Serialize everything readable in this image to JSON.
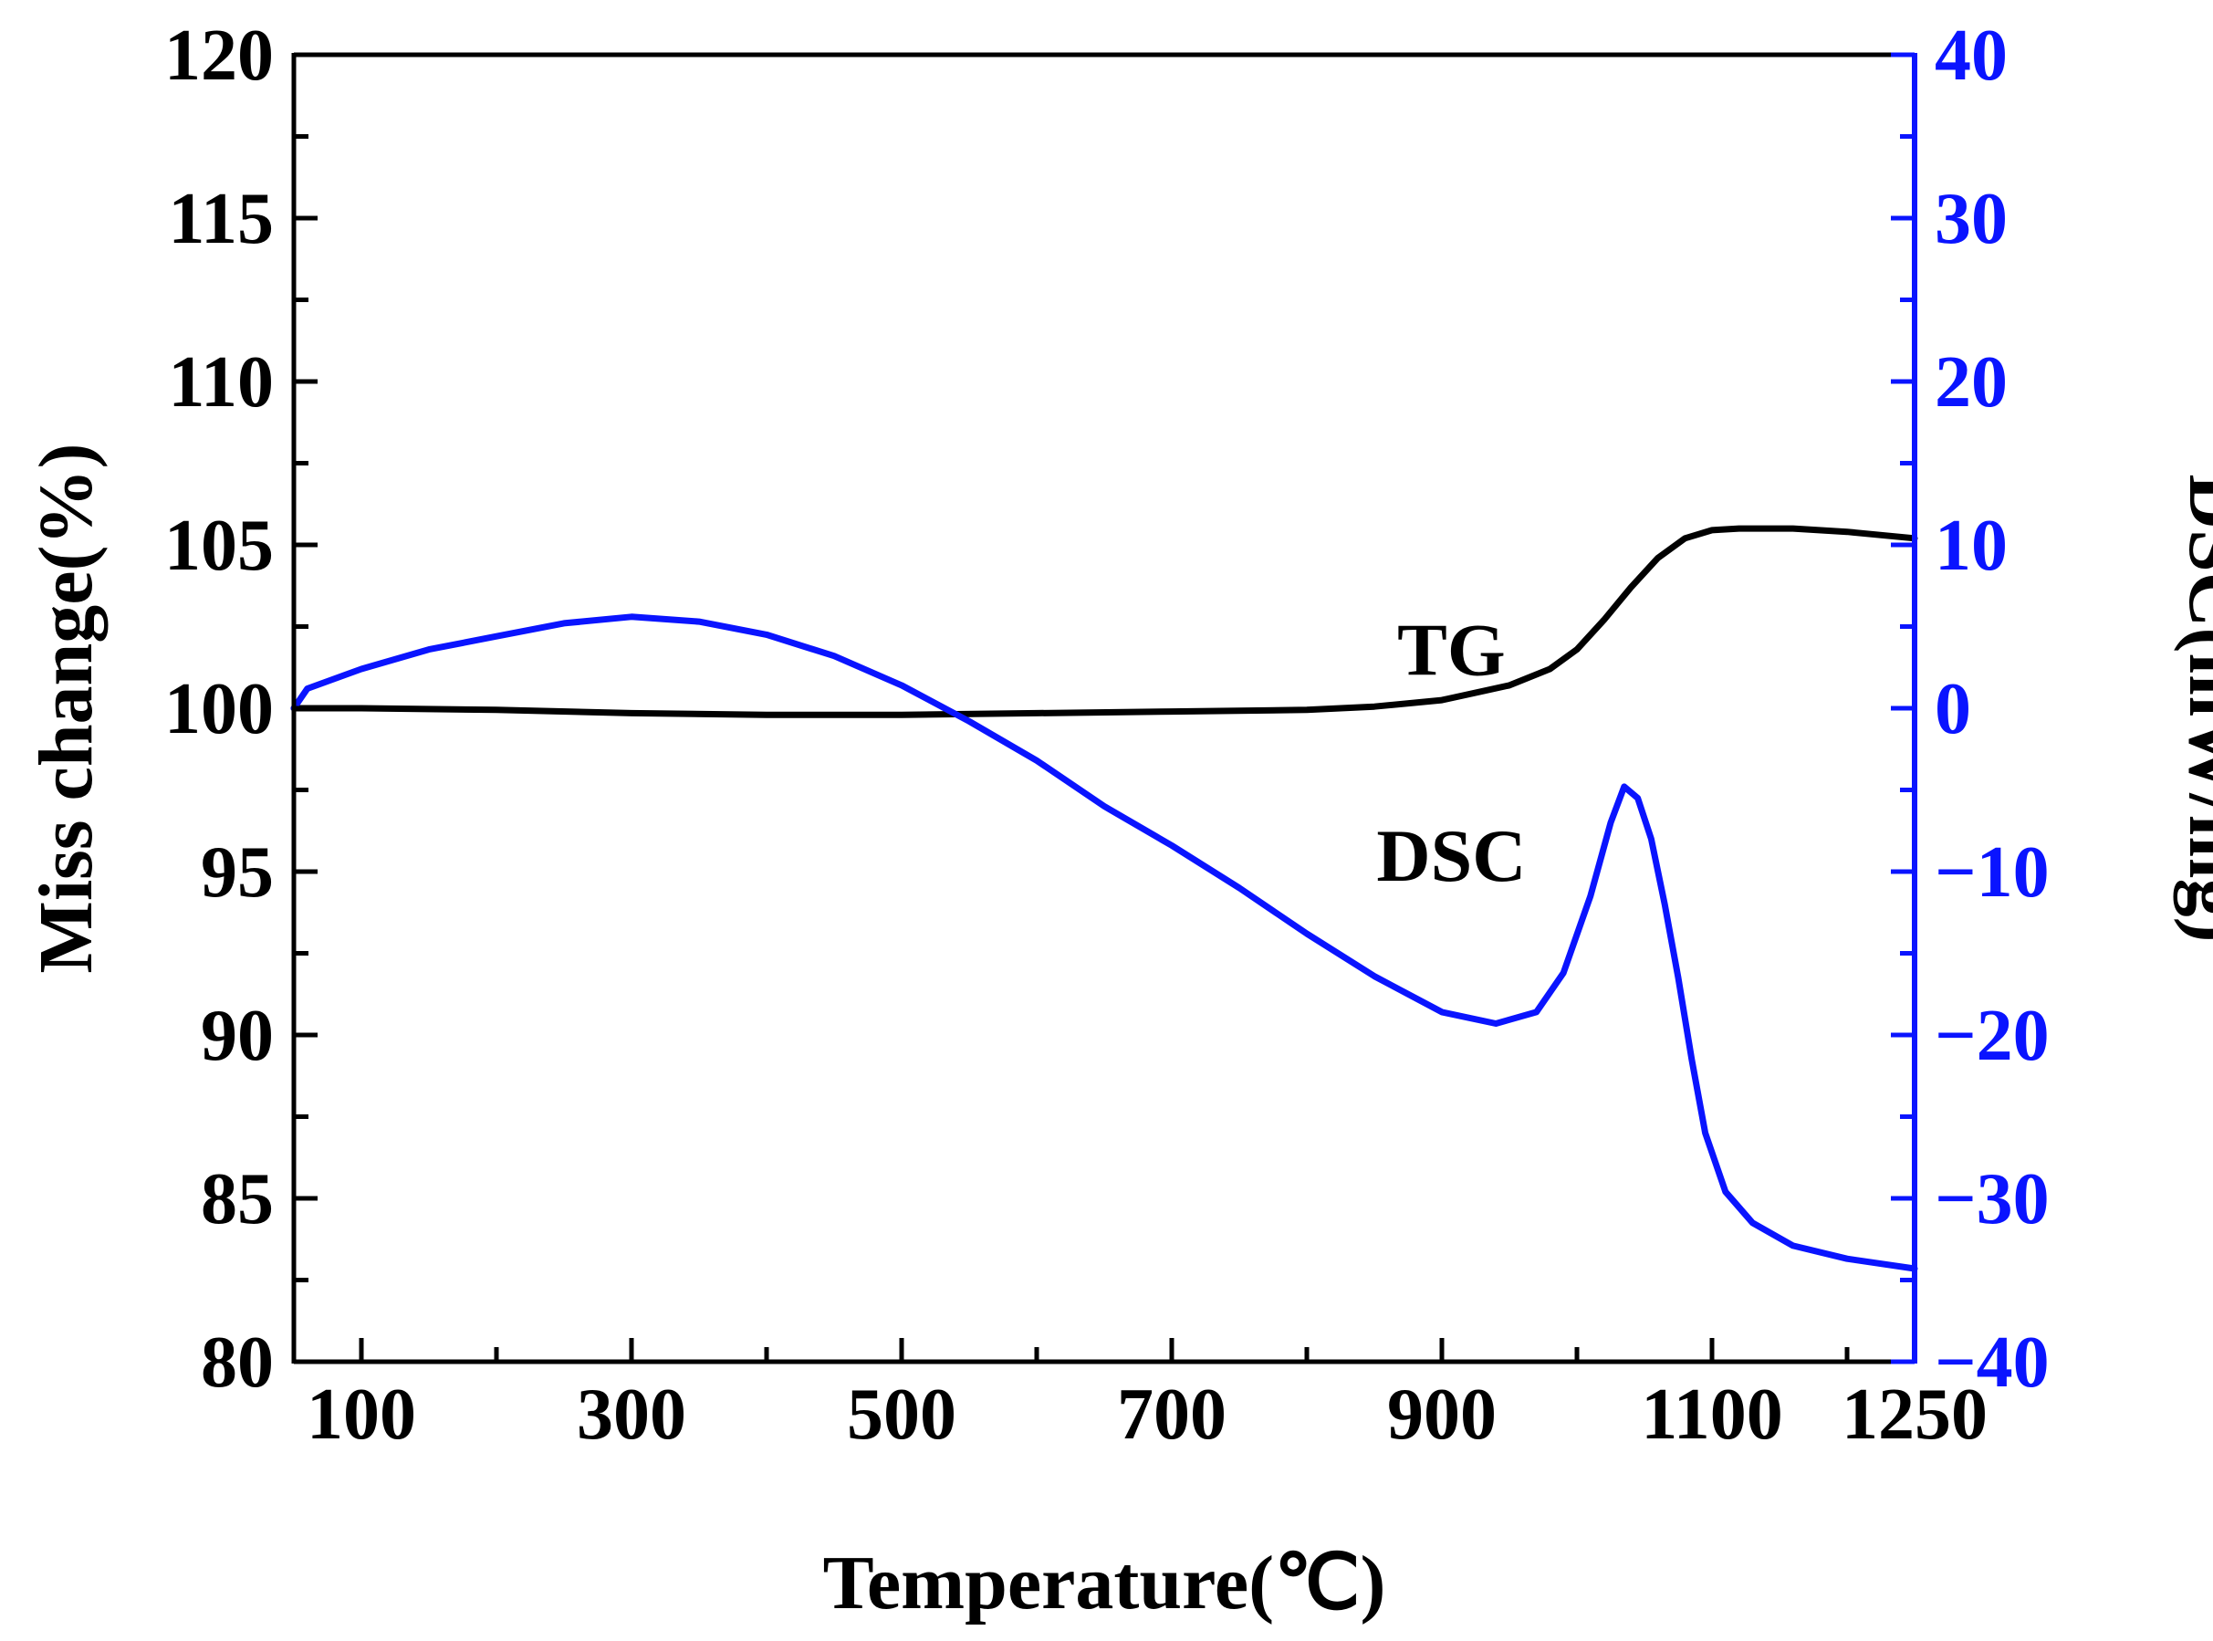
{
  "chart_data": {
    "type": "line",
    "title": "",
    "xlabel": "Temperature(℃)",
    "ylabel": "Miss change(%)",
    "y2label": "DSC(mW/mg)",
    "xlim": [
      50,
      1250
    ],
    "ylim": [
      80,
      120
    ],
    "y2lim": [
      -40,
      40
    ],
    "xticks": [
      100,
      300,
      500,
      700,
      900,
      1100,
      1250
    ],
    "yticks": [
      80,
      85,
      90,
      95,
      100,
      105,
      110,
      115,
      120
    ],
    "y2ticks": [
      -40,
      -30,
      -20,
      -10,
      0,
      10,
      20,
      30,
      40
    ],
    "colors": {
      "tg": "#000000",
      "dsc": "#0a14ff",
      "right_axis": "#0a14ff",
      "left_axis": "#000000"
    },
    "series": [
      {
        "name": "TG",
        "axis": "left",
        "x": [
          50,
          100,
          200,
          300,
          400,
          500,
          600,
          700,
          800,
          850,
          900,
          950,
          980,
          1000,
          1020,
          1040,
          1060,
          1080,
          1100,
          1120,
          1160,
          1200,
          1250
        ],
        "y": [
          100.0,
          100.0,
          99.95,
          99.85,
          99.8,
          99.8,
          99.85,
          99.9,
          99.95,
          100.05,
          100.25,
          100.7,
          101.2,
          101.8,
          102.7,
          103.7,
          104.6,
          105.2,
          105.45,
          105.5,
          105.5,
          105.4,
          105.2
        ]
      },
      {
        "name": "DSC",
        "axis": "right",
        "x": [
          50,
          60,
          100,
          150,
          200,
          250,
          300,
          350,
          400,
          450,
          500,
          550,
          600,
          650,
          700,
          750,
          800,
          850,
          900,
          940,
          970,
          990,
          1010,
          1025,
          1035,
          1045,
          1055,
          1065,
          1075,
          1085,
          1095,
          1110,
          1130,
          1160,
          1200,
          1250
        ],
        "y": [
          0,
          1.2,
          2.4,
          3.6,
          4.4,
          5.2,
          5.6,
          5.3,
          4.5,
          3.2,
          1.4,
          -0.8,
          -3.2,
          -6.0,
          -8.4,
          -11.0,
          -13.8,
          -16.4,
          -18.6,
          -19.3,
          -18.6,
          -16.2,
          -11.5,
          -7.0,
          -4.8,
          -5.5,
          -8.0,
          -12.0,
          -16.5,
          -21.5,
          -26.0,
          -29.6,
          -31.5,
          -32.9,
          -33.7,
          -34.3
        ]
      }
    ],
    "annotations": [
      {
        "text": "TG",
        "x": 880,
        "y": 101.8,
        "axis": "left"
      },
      {
        "text": "DSC",
        "x": 880,
        "y": 95.5,
        "axis": "left"
      }
    ],
    "grid": false,
    "legend": "none"
  }
}
